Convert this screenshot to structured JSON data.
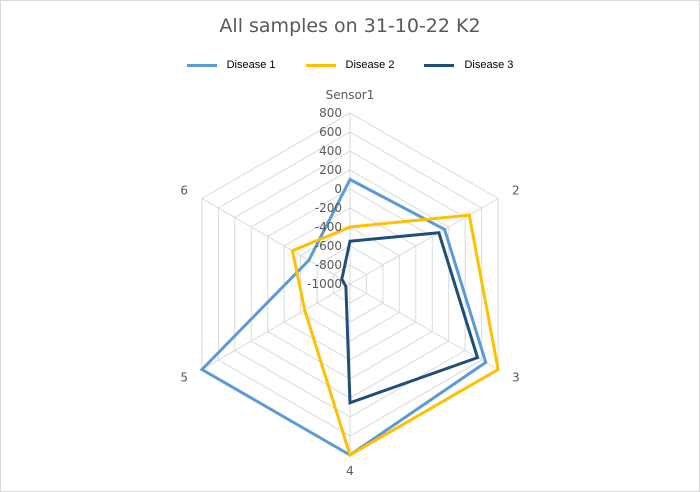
{
  "chart_data": {
    "type": "radar",
    "title": "All samples on 31-10-22 K2",
    "categories": [
      "Sensor1",
      "2",
      "3",
      "4",
      "5",
      "6"
    ],
    "rlim": [
      -1000,
      800
    ],
    "ticks": [
      "800",
      "600",
      "400",
      "200",
      "0",
      "-200",
      "-400",
      "-600",
      "-800",
      "-1000"
    ],
    "tick_values": [
      800,
      600,
      400,
      200,
      0,
      -200,
      -400,
      -600,
      -800,
      -1000
    ],
    "grid": true,
    "legend_position": "top",
    "series": [
      {
        "name": "Disease 1",
        "color": "#5b9bd5",
        "values": [
          100,
          150,
          650,
          800,
          800,
          -500
        ]
      },
      {
        "name": "Disease 2",
        "color": "#ffc000",
        "values": [
          -400,
          450,
          800,
          800,
          -450,
          -300
        ]
      },
      {
        "name": "Disease 3",
        "color": "#1f4e79",
        "values": [
          -550,
          80,
          550,
          250,
          -950,
          -900
        ]
      }
    ]
  }
}
